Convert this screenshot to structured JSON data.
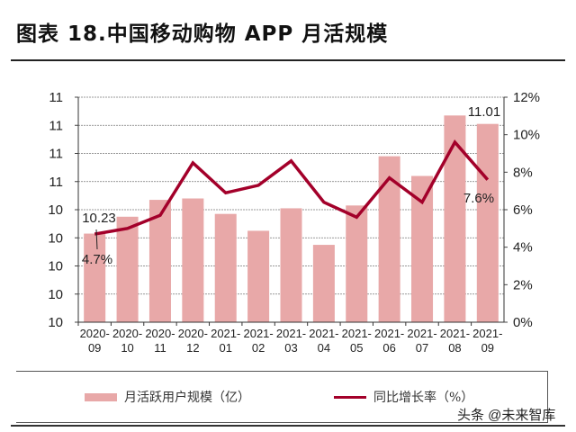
{
  "title": "图表 18.中国移动购物 APP 月活规模",
  "watermark": "头条 @未来智库",
  "chart_data": {
    "type": "bar+line",
    "title": "图表 18.中国移动购物 APP 月活规模",
    "categories": [
      [
        "2020-",
        "09"
      ],
      [
        "2020-",
        "10"
      ],
      [
        "2020-",
        "11"
      ],
      [
        "2020-",
        "12"
      ],
      [
        "2021-",
        "01"
      ],
      [
        "2021-",
        "02"
      ],
      [
        "2021-",
        "03"
      ],
      [
        "2021-",
        "04"
      ],
      [
        "2021-",
        "05"
      ],
      [
        "2021-",
        "06"
      ],
      [
        "2021-",
        "07"
      ],
      [
        "2021-",
        "08"
      ],
      [
        "2021-",
        "09"
      ]
    ],
    "series": [
      {
        "name": "月活跃用户规模（亿）",
        "type": "bar",
        "axis": "left",
        "color": "#e8a8a8",
        "values": [
          10.23,
          10.35,
          10.47,
          10.48,
          10.37,
          10.25,
          10.41,
          10.15,
          10.43,
          10.78,
          10.64,
          11.07,
          11.01
        ]
      },
      {
        "name": "同比增长率（%）",
        "type": "line",
        "axis": "right",
        "color": "#a3002a",
        "values": [
          4.7,
          5.0,
          5.7,
          8.5,
          6.9,
          7.3,
          8.6,
          6.4,
          5.6,
          7.7,
          6.4,
          9.6,
          7.6
        ]
      }
    ],
    "left_axis": {
      "ylim": [
        9.6,
        11.2
      ],
      "tick_labels": [
        "10",
        "10",
        "10",
        "10",
        "10",
        "11",
        "11",
        "11",
        "11"
      ]
    },
    "right_axis": {
      "ylim": [
        0,
        12
      ],
      "tick_labels": [
        "0%",
        "2%",
        "4%",
        "6%",
        "8%",
        "10%",
        "12%"
      ]
    },
    "data_labels": [
      {
        "series": 0,
        "index": 0,
        "text": "10.23"
      },
      {
        "series": 0,
        "index": 12,
        "text": "11.01"
      },
      {
        "series": 1,
        "index": 0,
        "text": "4.7%"
      },
      {
        "series": 1,
        "index": 12,
        "text": "7.6%"
      }
    ],
    "grid": true,
    "legend": "bottom"
  }
}
